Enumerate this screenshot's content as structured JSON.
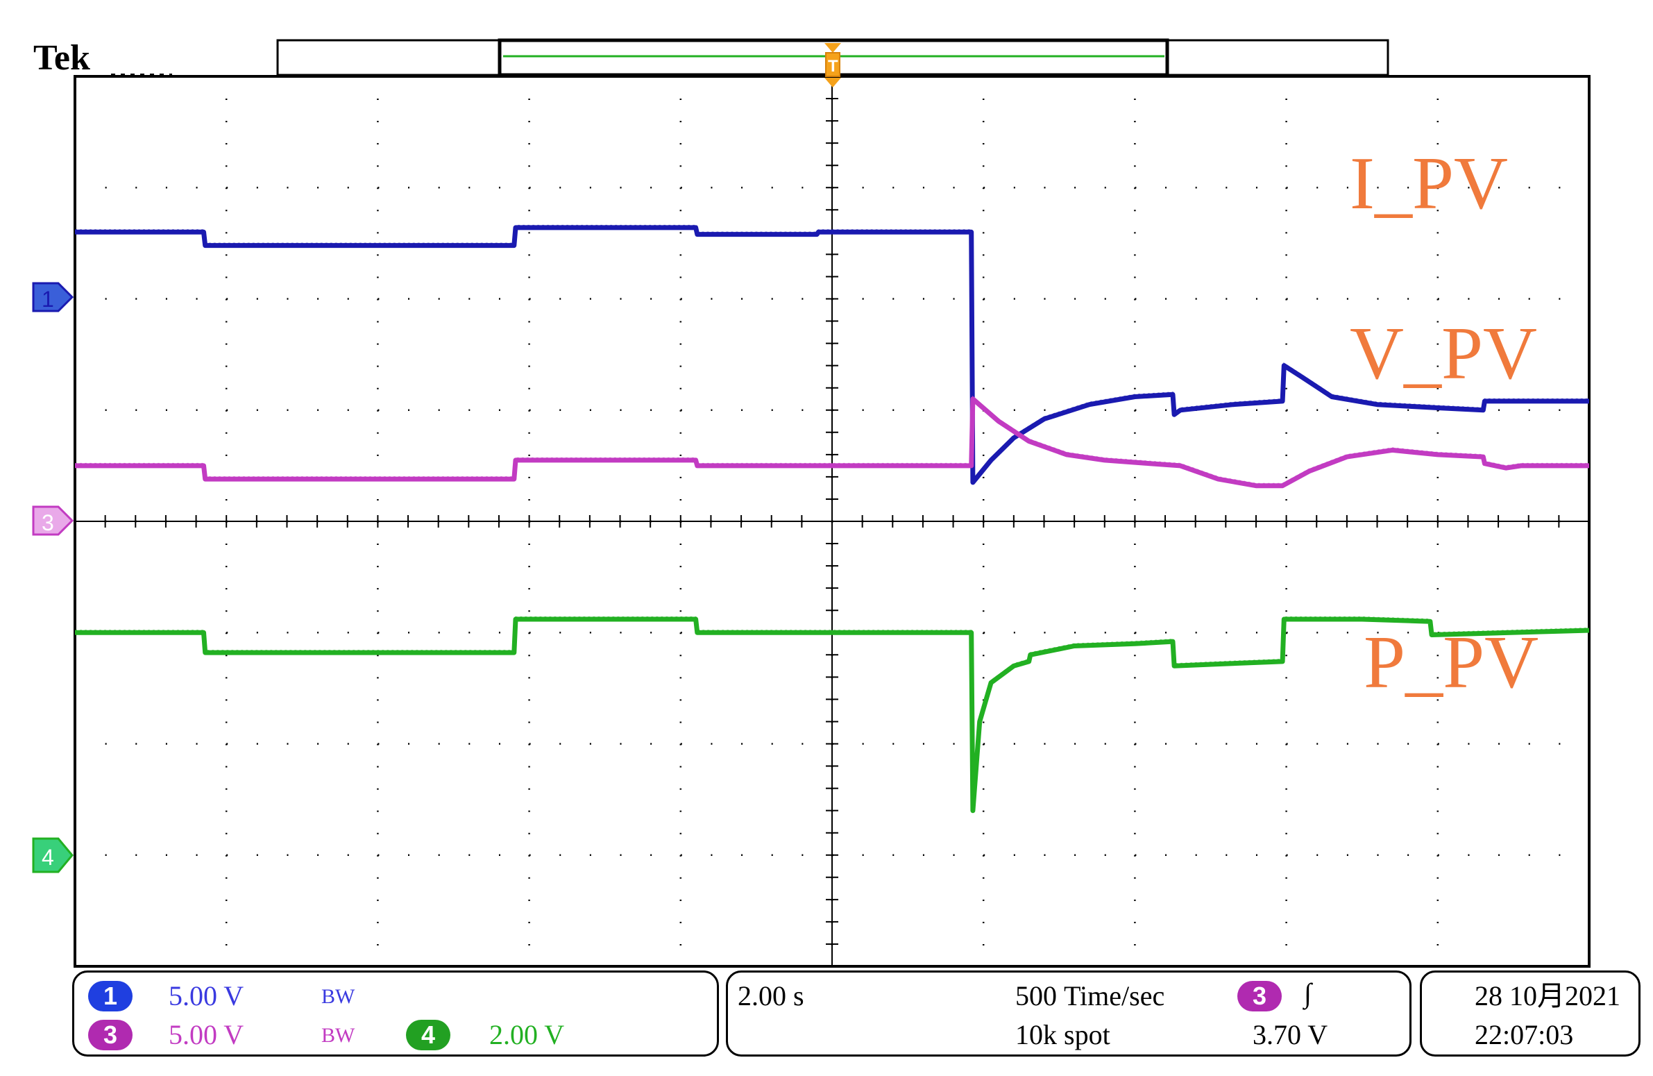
{
  "brand": "Tek",
  "chart_data": {
    "type": "line",
    "title": "",
    "xlabel": "",
    "ylabel": "",
    "x_unit": "s",
    "x_divisions": 10,
    "y_divisions": 8,
    "x_per_div": 2.0,
    "xlim": [
      -10,
      10
    ],
    "ylim": [
      -4,
      4
    ],
    "grid": true,
    "series": [
      {
        "name": "I_PV",
        "channel": "1",
        "color": "#1A1AB0",
        "points": [
          [
            -10,
            2.6
          ],
          [
            -8.3,
            2.6
          ],
          [
            -8.25,
            2.47
          ],
          [
            -4.2,
            2.47
          ],
          [
            -4.15,
            2.63
          ],
          [
            -2.0,
            2.63
          ],
          [
            -1.9,
            2.6
          ],
          [
            -2.2,
            2.6
          ],
          [
            -2.0,
            2.6
          ],
          [
            -2.0,
            2.6
          ],
          [
            -2.1,
            2.6
          ],
          [
            -0.2,
            2.6
          ],
          [
            -2.1,
            2.6
          ],
          [
            -2.1,
            2.6
          ],
          [
            -2.1,
            2.6
          ],
          [
            -2.1,
            2.6
          ],
          [
            -2.0,
            2.6
          ],
          [
            -2.2,
            2.6
          ],
          [
            -2.1,
            2.6
          ],
          [
            -2.1,
            2.6
          ],
          [
            -2.1,
            2.6
          ],
          [
            -2.1,
            2.6
          ],
          [
            -2.1,
            2.6
          ],
          [
            -2.1,
            2.6
          ],
          [
            -2.2,
            2.6
          ],
          [
            -2.2,
            2.6
          ],
          [
            -2.1,
            2.6
          ],
          [
            -2.1,
            2.6
          ],
          [
            -2.1,
            2.6
          ],
          [
            -2.2,
            2.6
          ],
          [
            -2.2,
            2.6
          ],
          [
            -2.1,
            2.6
          ],
          [
            -2.1,
            2.6
          ],
          [
            -2.1,
            2.6
          ],
          [
            -2.2,
            2.6
          ],
          [
            -2.1,
            2.6
          ],
          [
            -2.1,
            2.6
          ]
        ]
      },
      {
        "name": "V_PV",
        "channel": "3",
        "color": "#C23BC2",
        "points": []
      },
      {
        "name": "P_PV",
        "channel": "4",
        "color": "#22B022",
        "points": []
      }
    ]
  },
  "labels": {
    "i_pv": "I_PV",
    "v_pv": "V_PV",
    "p_pv": "P_PV"
  },
  "markers": {
    "ch1": "1",
    "ch3": "3",
    "ch4": "4",
    "trigger": "T"
  },
  "readout": {
    "ch1_badge": "1",
    "ch1_scale": "5.00 V",
    "ch1_bw": "BW",
    "ch3_badge": "3",
    "ch3_scale": "5.00 V",
    "ch3_bw": "BW",
    "ch4_badge": "4",
    "ch4_scale": "2.00 V",
    "time_div": "2.00 s",
    "sample_rate_value": "500",
    "sample_rate_unit": "Time/sec",
    "record_length_value": "10k",
    "record_length_unit": "spot",
    "trig_badge": "3",
    "trig_slope": "∫",
    "trig_level": "3.70 V",
    "date": "28 10月2021",
    "time": "22:07:03"
  },
  "colors": {
    "ch1": "#1A1AB0",
    "ch3": "#C23BC2",
    "ch4": "#22B022",
    "label": "#F07A3C",
    "trigger": "#F5A21B",
    "record_bar": "#22B022"
  }
}
